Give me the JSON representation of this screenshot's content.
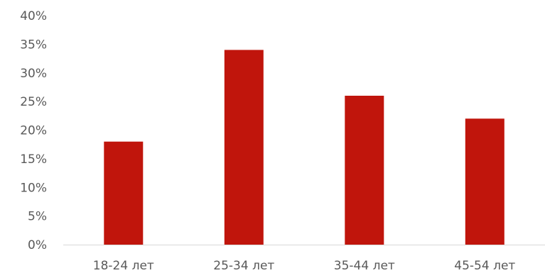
{
  "chart_data": {
    "type": "bar",
    "categories": [
      "18-24 лет",
      "25-34 лет",
      "35-44 лет",
      "45-54 лет"
    ],
    "values": [
      18,
      34,
      26,
      22
    ],
    "ylim": [
      0,
      40
    ],
    "yticks": [
      0,
      5,
      10,
      15,
      20,
      25,
      30,
      35,
      40
    ],
    "ytick_labels": [
      "0%",
      "5%",
      "10%",
      "15%",
      "20%",
      "25%",
      "30%",
      "35%",
      "40%"
    ],
    "grid": false,
    "legend": "none",
    "bar_color": "#C0150C",
    "axis_color": "#D9D9D9",
    "text_color": "#595959"
  }
}
